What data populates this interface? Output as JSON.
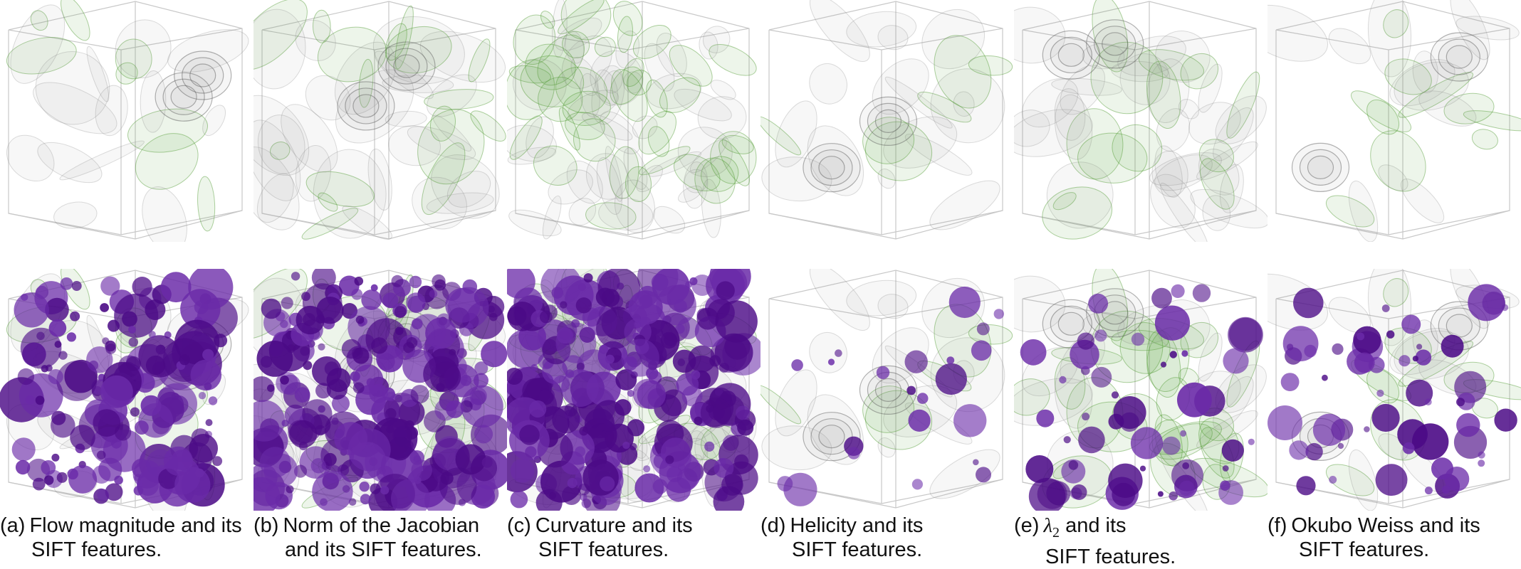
{
  "figure": {
    "panels": [
      {
        "id": "a",
        "label": "(a)",
        "line1": "Flow magnitude and its",
        "line2": "SIFT features.",
        "features": "sparse-top",
        "top_density": "low"
      },
      {
        "id": "b",
        "label": "(b)",
        "line1": "Norm of the Jacobian",
        "line2": "and its SIFT features.",
        "features": "dense",
        "top_density": "medium"
      },
      {
        "id": "c",
        "label": "(c)",
        "line1": "Curvature and its",
        "line2": "SIFT features.",
        "features": "dense",
        "top_density": "high"
      },
      {
        "id": "d",
        "label": "(d)",
        "line1": "Helicity and its",
        "line2": "SIFT features.",
        "features": "sparse",
        "top_density": "low"
      },
      {
        "id": "e",
        "label": "(e)",
        "line1_symbol": "λ",
        "line1_sub": "2",
        "line1": " and its",
        "line2": "SIFT features.",
        "features": "medium",
        "top_density": "medium"
      },
      {
        "id": "f",
        "label": "(f)",
        "line1": "Okubo Weiss and its",
        "line2": "SIFT features.",
        "features": "medium",
        "top_density": "low"
      }
    ],
    "colors": {
      "volume_green": "#4e9a2e",
      "volume_gray": "#8a8a8a",
      "feature_purple": "#4b0a86",
      "feature_purple_light": "#6a2aa8",
      "cube_edge": "#c8c8c8"
    }
  }
}
